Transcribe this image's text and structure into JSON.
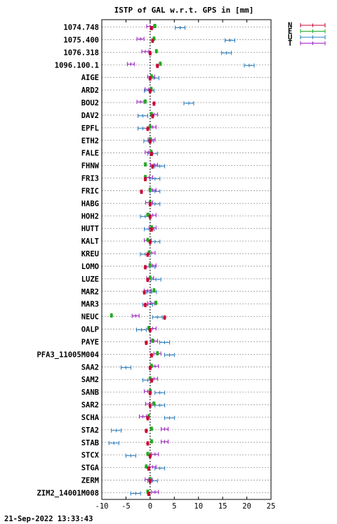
{
  "chart_data": {
    "type": "scatter",
    "title": "ISTP of GAL w.r.t. GPS in [mm]",
    "xlabel": "",
    "ylabel": "",
    "xlim": [
      -10,
      25
    ],
    "xticks": [
      -10,
      -5,
      0,
      5,
      10,
      15,
      20,
      25
    ],
    "grid": true,
    "legend_position": "top-right",
    "timestamp": "21-Sep-2022 13:33:43",
    "series": [
      {
        "name": "N",
        "color": "#cc0033"
      },
      {
        "name": "E",
        "color": "#22aa22"
      },
      {
        "name": "U",
        "color": "#2a7fc0"
      },
      {
        "name": "T",
        "color": "#a020c0"
      }
    ],
    "stations": [
      {
        "name": "1074.748",
        "N": 0.3,
        "E": 1.0,
        "U": 6.2,
        "T": 0.0
      },
      {
        "name": "1075.400",
        "N": 0.5,
        "E": 0.8,
        "U": 16.5,
        "T": -2.0
      },
      {
        "name": "1076.318",
        "N": 0.0,
        "E": 1.3,
        "U": 15.8,
        "T": -1.0
      },
      {
        "name": "1096.100.1",
        "N": 1.5,
        "E": 2.1,
        "U": 20.5,
        "T": -4.0
      },
      {
        "name": "AIGE",
        "N": 0.0,
        "E": 0.3,
        "U": 0.8,
        "T": 0.2
      },
      {
        "name": "ARD2",
        "N": 0.0,
        "E": 0.2,
        "U": -0.2,
        "T": -0.3
      },
      {
        "name": "BOU2",
        "N": 0.8,
        "E": -1.0,
        "U": 8.0,
        "T": -2.0
      },
      {
        "name": "DAV2",
        "N": 0.5,
        "E": 0.3,
        "U": -1.5,
        "T": 0.8
      },
      {
        "name": "EPFL",
        "N": -0.5,
        "E": 0.0,
        "U": -1.5,
        "T": 0.5
      },
      {
        "name": "ETH2",
        "N": 0.0,
        "E": 0.0,
        "U": -0.3,
        "T": 0.3
      },
      {
        "name": "FALE",
        "N": 0.3,
        "E": 0.2,
        "U": 0.5,
        "T": -0.3
      },
      {
        "name": "FHNW",
        "N": 0.5,
        "E": -1.0,
        "U": 2.0,
        "T": 0.8
      },
      {
        "name": "FRI3",
        "N": -1.0,
        "E": -1.0,
        "U": 1.0,
        "T": -0.2
      },
      {
        "name": "FRIC",
        "N": -1.8,
        "E": 0.0,
        "U": 1.0,
        "T": 0.5
      },
      {
        "name": "HABG",
        "N": 0.0,
        "E": 0.0,
        "U": 1.0,
        "T": -0.2
      },
      {
        "name": "HOH2",
        "N": 0.0,
        "E": -0.5,
        "U": -1.0,
        "T": 0.5
      },
      {
        "name": "HUTT",
        "N": 0.3,
        "E": 0.3,
        "U": -0.2,
        "T": 0.5
      },
      {
        "name": "KALT",
        "N": 0.0,
        "E": -0.5,
        "U": 1.0,
        "T": -0.5
      },
      {
        "name": "KREU",
        "N": -0.5,
        "E": -0.2,
        "U": -1.0,
        "T": 0.3
      },
      {
        "name": "LOMO",
        "N": -1.0,
        "E": 0.0,
        "U": 0.0,
        "T": 0.5
      },
      {
        "name": "LUZE",
        "N": -0.5,
        "E": 0.0,
        "U": 1.2,
        "T": 0.0
      },
      {
        "name": "MAR2",
        "N": -1.2,
        "E": 0.8,
        "U": 0.3,
        "T": -0.5
      },
      {
        "name": "MAR3",
        "N": -1.0,
        "E": 1.2,
        "U": -0.5,
        "T": 0.2
      },
      {
        "name": "NEUC",
        "N": 3.0,
        "E": -8.0,
        "U": 1.5,
        "T": -3.0
      },
      {
        "name": "OALP",
        "N": 0.0,
        "E": -0.3,
        "U": -1.8,
        "T": 0.5
      },
      {
        "name": "PAYE",
        "N": -0.8,
        "E": 0.5,
        "U": 3.0,
        "T": 0.8
      },
      {
        "name": "PFA3_11005M004",
        "N": 0.3,
        "E": 1.5,
        "U": 4.0,
        "T": 1.5
      },
      {
        "name": "SAA2",
        "N": 0.0,
        "E": 0.3,
        "U": -5.0,
        "T": 1.0
      },
      {
        "name": "SAM2",
        "N": 0.3,
        "E": 0.0,
        "U": -0.5,
        "T": 0.8
      },
      {
        "name": "SANB",
        "N": 0.0,
        "E": 0.0,
        "U": 2.0,
        "T": -0.5
      },
      {
        "name": "SAR2",
        "N": 0.0,
        "E": 0.8,
        "U": 2.0,
        "T": -0.2
      },
      {
        "name": "SCHA",
        "N": -0.5,
        "E": -0.3,
        "U": 4.0,
        "T": -1.5
      },
      {
        "name": "STA2",
        "N": -0.8,
        "E": 0.3,
        "U": -7.0,
        "T": 3.0
      },
      {
        "name": "STAB",
        "N": -0.5,
        "E": 0.3,
        "U": -7.5,
        "T": 3.0
      },
      {
        "name": "STCX",
        "N": 0.0,
        "E": -0.5,
        "U": -4.0,
        "T": 1.0
      },
      {
        "name": "STGA",
        "N": -0.3,
        "E": -0.8,
        "U": 2.0,
        "T": 0.5
      },
      {
        "name": "ZERM",
        "N": 0.0,
        "E": 0.0,
        "U": 0.5,
        "T": -0.3
      },
      {
        "name": "ZIM2_14001M008",
        "N": -0.3,
        "E": -0.5,
        "U": -3.0,
        "T": 1.0
      }
    ]
  }
}
